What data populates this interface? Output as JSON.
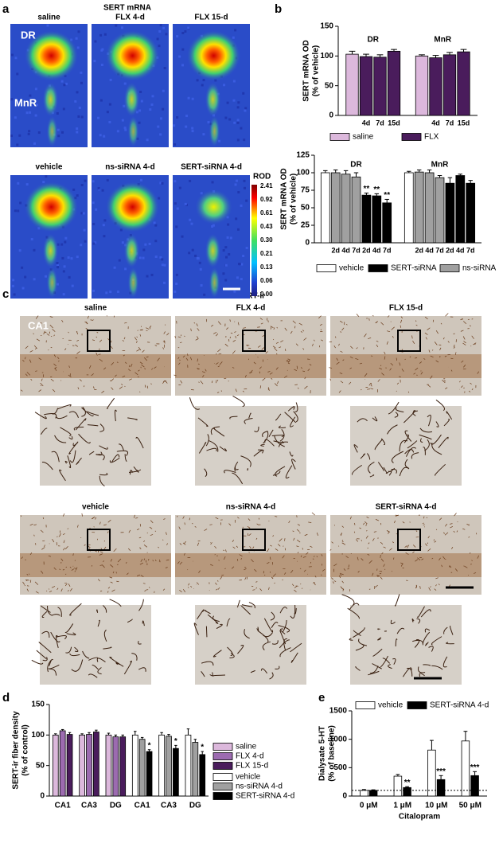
{
  "panel_labels": [
    "a",
    "b",
    "c",
    "d",
    "e"
  ],
  "panel_a": {
    "title": "SERT mRNA",
    "image_labels": [
      "saline",
      "FLX 4-d",
      "FLX 15-d",
      "vehicle",
      "ns-siRNA 4-d",
      "SERT-siRNA 4-d"
    ],
    "region_labels": [
      "DR",
      "MnR"
    ],
    "colorbar_title": "ROD",
    "colorbar_ticks": [
      "2.41",
      "0.92",
      "0.61",
      "0.43",
      "0.30",
      "0.21",
      "0.13",
      "0.06",
      "0.00"
    ]
  },
  "panel_c": {
    "title": "SERT-ir",
    "image_labels": [
      "saline",
      "FLX 4-d",
      "FLX 15-d",
      "vehicle",
      "ns-siRNA 4-d",
      "SERT-siRNA 4-d"
    ],
    "region_label": "CA1"
  },
  "chart_data": [
    {
      "type": "bar",
      "ylabel": [
        "SERT mRNA OD",
        "(% of vehicle)"
      ],
      "categories": [
        "DR",
        "MnR"
      ],
      "ylim": [
        0,
        150
      ],
      "yticks": [
        0,
        50,
        100,
        150
      ],
      "series": [
        {
          "color": "#dcb8dc",
          "values": [
            103,
            100
          ],
          "errors": [
            5,
            2
          ]
        },
        {
          "color": "#4a1c5c",
          "label": "4d",
          "values": [
            99,
            97
          ],
          "errors": [
            4,
            4
          ]
        },
        {
          "color": "#4a1c5c",
          "label": "7d",
          "values": [
            98,
            102
          ],
          "errors": [
            4,
            4
          ]
        },
        {
          "color": "#4a1c5c",
          "label": "15d",
          "values": [
            108,
            107
          ],
          "errors": [
            3,
            4
          ]
        }
      ],
      "legend": [
        {
          "name": "saline",
          "color": "#dcb8dc"
        },
        {
          "name": "FLX",
          "color": "#4a1c5c"
        }
      ]
    },
    {
      "type": "bar",
      "ylabel": [
        "SERT mRNA OD",
        "(% of vehicle)"
      ],
      "categories": [
        "DR",
        "MnR"
      ],
      "ylim": [
        0,
        125
      ],
      "yticks": [
        0,
        25,
        50,
        75,
        100,
        125
      ],
      "series": [
        {
          "color": "#ffffff",
          "values": [
            100,
            100
          ],
          "errors": [
            3,
            2
          ]
        },
        {
          "color": "#a0a0a0",
          "label": "2d",
          "values": [
            100,
            101
          ],
          "errors": [
            4,
            3
          ]
        },
        {
          "color": "#a0a0a0",
          "label": "4d",
          "values": [
            98,
            100
          ],
          "errors": [
            5,
            4
          ]
        },
        {
          "color": "#a0a0a0",
          "label": "7d",
          "values": [
            94,
            93
          ],
          "errors": [
            6,
            3
          ]
        },
        {
          "color": "#000000",
          "label": "2d",
          "values": [
            68,
            85
          ],
          "errors": [
            3,
            8
          ],
          "stars": [
            "**",
            null
          ]
        },
        {
          "color": "#000000",
          "label": "4d",
          "values": [
            67,
            96
          ],
          "errors": [
            3,
            2
          ],
          "stars": [
            "**",
            null
          ]
        },
        {
          "color": "#000000",
          "label": "7d",
          "values": [
            57,
            85
          ],
          "errors": [
            5,
            4
          ],
          "stars": [
            "**",
            null
          ]
        }
      ],
      "legend": [
        {
          "name": "vehicle",
          "color": "#ffffff"
        },
        {
          "name": "SERT-siRNA",
          "color": "#000000"
        },
        {
          "name": "ns-siRNA",
          "color": "#a0a0a0"
        }
      ]
    },
    {
      "type": "bar",
      "ylabel": [
        "SERT-ir fiber density",
        "(% of control)"
      ],
      "categories": [
        "CA1",
        "CA3",
        "DG",
        "CA1",
        "CA3",
        "DG"
      ],
      "ylim": [
        0,
        150
      ],
      "yticks": [
        0,
        50,
        100,
        150
      ],
      "series": [
        {
          "name": "saline",
          "color": "#dcb8dc",
          "values": [
            100,
            100,
            100,
            null,
            null,
            null
          ],
          "errors": [
            2,
            2,
            3,
            null,
            null,
            null
          ]
        },
        {
          "name": "FLX 4-d",
          "color": "#9c6bb0",
          "values": [
            107,
            101,
            97,
            null,
            null,
            null
          ],
          "errors": [
            2,
            3,
            3,
            null,
            null,
            null
          ]
        },
        {
          "name": "FLX 15-d",
          "color": "#4a1c5c",
          "values": [
            101,
            105,
            97,
            null,
            null,
            null
          ],
          "errors": [
            3,
            3,
            3,
            null,
            null,
            null
          ]
        },
        {
          "name": "vehicle",
          "color": "#ffffff",
          "values": [
            null,
            null,
            null,
            100,
            100,
            100
          ],
          "errors": [
            null,
            null,
            null,
            6,
            4,
            10
          ]
        },
        {
          "name": "ns-siRNA 4-d",
          "color": "#a0a0a0",
          "values": [
            null,
            null,
            null,
            93,
            98,
            88
          ],
          "errors": [
            null,
            null,
            null,
            3,
            3,
            5
          ]
        },
        {
          "name": "SERT-siRNA 4-d",
          "color": "#000000",
          "values": [
            null,
            null,
            null,
            73,
            78,
            68
          ],
          "errors": [
            null,
            null,
            null,
            3,
            5,
            5
          ],
          "stars": [
            null,
            null,
            null,
            "*",
            "*",
            "*"
          ]
        }
      ]
    },
    {
      "type": "bar",
      "ylabel": [
        "Dialysate 5-HT",
        "(% of baseline)"
      ],
      "xlabel": "Citalopram",
      "categories": [
        "0 μM",
        "1 μM",
        "10 μM",
        "50 μM"
      ],
      "ylim": [
        0,
        1500
      ],
      "yticks": [
        0,
        500,
        1000,
        1500
      ],
      "baseline": 100,
      "series": [
        {
          "name": "vehicle",
          "color": "#ffffff",
          "values": [
            100,
            350,
            810,
            970
          ],
          "errors": [
            15,
            30,
            170,
            170
          ]
        },
        {
          "name": "SERT-siRNA 4-d",
          "color": "#000000",
          "values": [
            100,
            150,
            290,
            360
          ],
          "errors": [
            10,
            15,
            70,
            70
          ],
          "stars": [
            null,
            "**",
            "***",
            "***"
          ]
        }
      ]
    }
  ]
}
